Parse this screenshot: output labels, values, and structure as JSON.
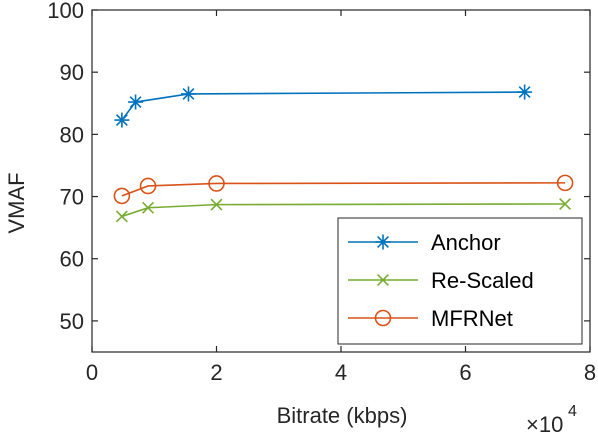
{
  "chart_data": {
    "type": "line",
    "title": "",
    "xlabel": "Bitrate (kbps)",
    "ylabel": "VMAF",
    "x_scale_label": {
      "base": "×10",
      "exponent": "4"
    },
    "xlim": [
      0,
      80000
    ],
    "ylim": [
      45,
      100
    ],
    "x_ticks": [
      0,
      20000,
      40000,
      60000,
      80000
    ],
    "x_tick_labels": [
      "0",
      "2",
      "4",
      "6",
      "8"
    ],
    "y_ticks": [
      50,
      60,
      70,
      80,
      90,
      100
    ],
    "y_tick_labels": [
      "50",
      "60",
      "70",
      "80",
      "90",
      "100"
    ],
    "grid": false,
    "legend_position": "bottom-right",
    "series": [
      {
        "name": "Anchor",
        "color": "#0072BD",
        "marker": "asterisk",
        "x": [
          4800,
          7000,
          15500,
          69500
        ],
        "y": [
          82.3,
          85.2,
          86.5,
          86.8
        ]
      },
      {
        "name": "Re-Scaled",
        "color": "#77AC30",
        "marker": "x",
        "x": [
          4800,
          9000,
          20000,
          76000
        ],
        "y": [
          66.8,
          68.2,
          68.7,
          68.8
        ]
      },
      {
        "name": "MFRNet",
        "color": "#D95319",
        "marker": "circle",
        "x": [
          4800,
          9000,
          20000,
          76000
        ],
        "y": [
          70.1,
          71.7,
          72.1,
          72.2
        ]
      }
    ]
  }
}
